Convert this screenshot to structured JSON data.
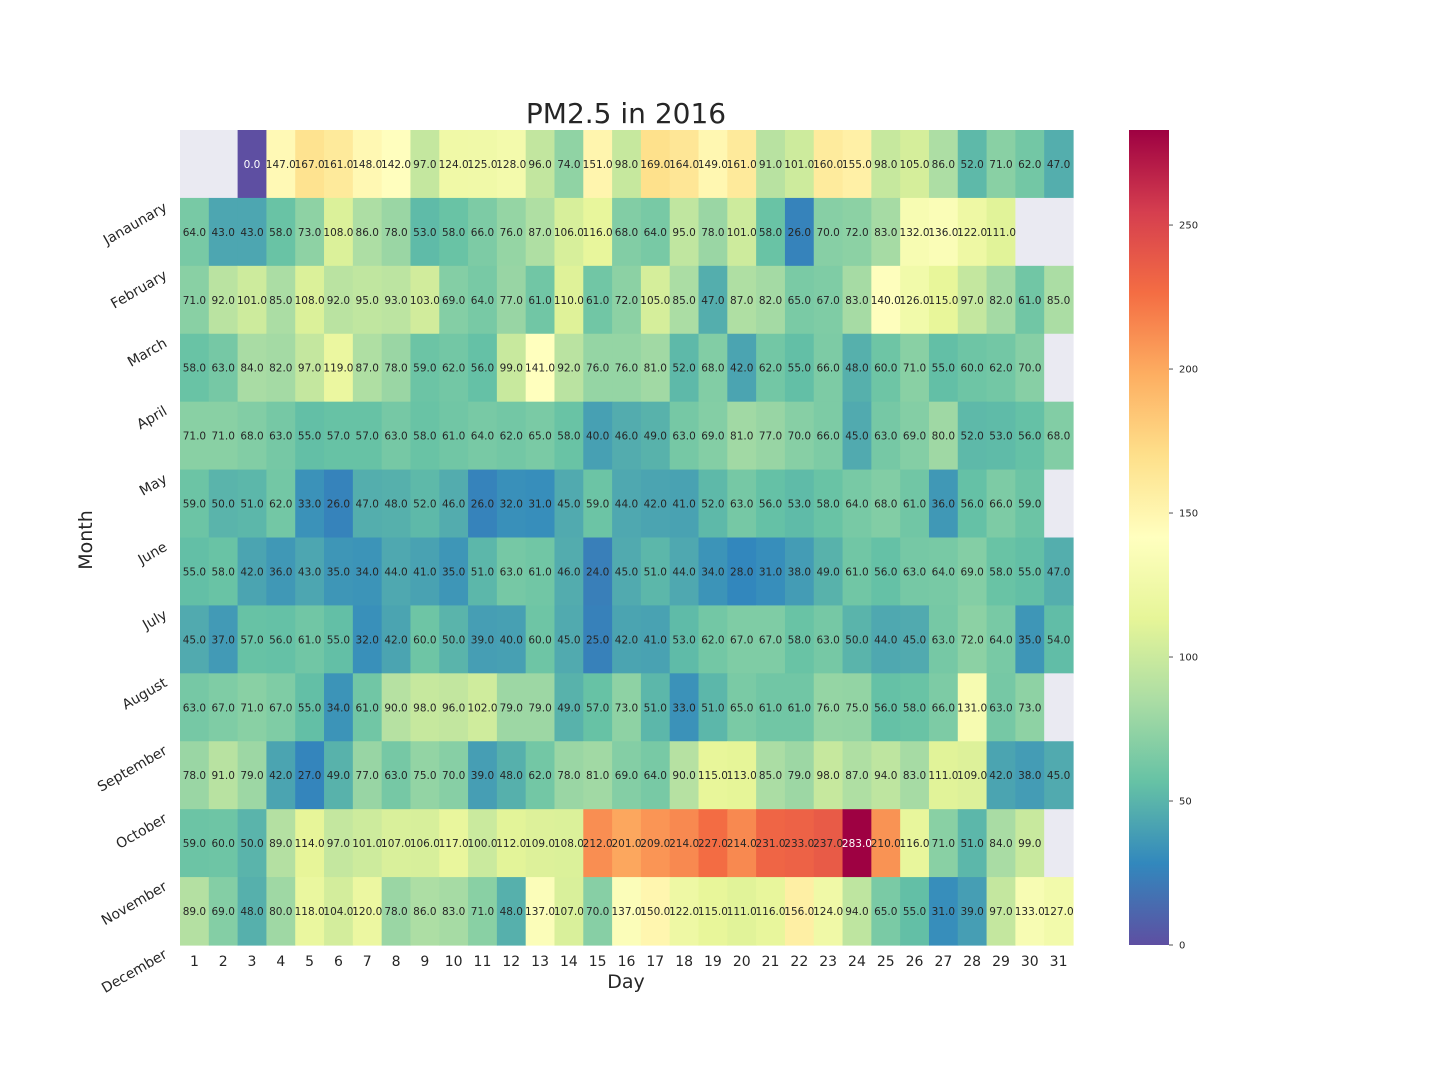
{
  "chart_data": {
    "type": "heatmap",
    "title": "PM2.5 in 2016",
    "xlabel": "Day",
    "ylabel": "Month",
    "x": [
      1,
      2,
      3,
      4,
      5,
      6,
      7,
      8,
      9,
      10,
      11,
      12,
      13,
      14,
      15,
      16,
      17,
      18,
      19,
      20,
      21,
      22,
      23,
      24,
      25,
      26,
      27,
      28,
      29,
      30,
      31
    ],
    "y_tick_labels": [
      "Janaunary",
      "February",
      "March",
      "April",
      "May",
      "June",
      "July",
      "August",
      "September",
      "October",
      "November",
      "December"
    ],
    "colorbar": {
      "range": [
        0,
        283
      ],
      "ticks": [
        0,
        50,
        100,
        150,
        200,
        250
      ],
      "colormap": "Spectral_r"
    },
    "missing_color": "#eaeaf2",
    "values": [
      [
        null,
        null,
        0.0,
        147.0,
        167.0,
        161.0,
        148.0,
        142.0,
        97.0,
        124.0,
        125.0,
        128.0,
        96.0,
        74.0,
        151.0,
        98.0,
        169.0,
        164.0,
        149.0,
        161.0,
        91.0,
        101.0,
        160.0,
        155.0,
        98.0,
        105.0,
        86.0,
        52.0,
        71.0,
        62.0,
        47.0
      ],
      [
        64.0,
        43.0,
        43.0,
        58.0,
        73.0,
        108.0,
        86.0,
        78.0,
        53.0,
        58.0,
        66.0,
        76.0,
        87.0,
        106.0,
        116.0,
        68.0,
        64.0,
        95.0,
        78.0,
        101.0,
        58.0,
        26.0,
        70.0,
        72.0,
        83.0,
        132.0,
        136.0,
        122.0,
        111.0,
        null,
        null
      ],
      [
        71.0,
        92.0,
        101.0,
        85.0,
        108.0,
        92.0,
        95.0,
        93.0,
        103.0,
        69.0,
        64.0,
        77.0,
        61.0,
        110.0,
        61.0,
        72.0,
        105.0,
        85.0,
        47.0,
        87.0,
        82.0,
        65.0,
        67.0,
        83.0,
        140.0,
        126.0,
        115.0,
        97.0,
        82.0,
        61.0,
        85.0
      ],
      [
        58.0,
        63.0,
        84.0,
        82.0,
        97.0,
        119.0,
        87.0,
        78.0,
        59.0,
        62.0,
        56.0,
        99.0,
        141.0,
        92.0,
        76.0,
        76.0,
        81.0,
        52.0,
        68.0,
        42.0,
        62.0,
        55.0,
        66.0,
        48.0,
        60.0,
        71.0,
        55.0,
        60.0,
        62.0,
        70.0,
        null
      ],
      [
        71.0,
        71.0,
        68.0,
        63.0,
        55.0,
        57.0,
        57.0,
        63.0,
        58.0,
        61.0,
        64.0,
        62.0,
        65.0,
        58.0,
        40.0,
        46.0,
        49.0,
        63.0,
        69.0,
        81.0,
        77.0,
        70.0,
        66.0,
        45.0,
        63.0,
        69.0,
        80.0,
        52.0,
        53.0,
        56.0,
        68.0
      ],
      [
        59.0,
        50.0,
        51.0,
        62.0,
        33.0,
        26.0,
        47.0,
        48.0,
        52.0,
        46.0,
        26.0,
        32.0,
        31.0,
        45.0,
        59.0,
        44.0,
        42.0,
        41.0,
        52.0,
        63.0,
        56.0,
        53.0,
        58.0,
        64.0,
        68.0,
        61.0,
        36.0,
        56.0,
        66.0,
        59.0,
        null
      ],
      [
        55.0,
        58.0,
        42.0,
        36.0,
        43.0,
        35.0,
        34.0,
        44.0,
        41.0,
        35.0,
        51.0,
        63.0,
        61.0,
        46.0,
        24.0,
        45.0,
        51.0,
        44.0,
        34.0,
        28.0,
        31.0,
        38.0,
        49.0,
        61.0,
        56.0,
        63.0,
        64.0,
        69.0,
        58.0,
        55.0,
        47.0
      ],
      [
        45.0,
        37.0,
        57.0,
        56.0,
        61.0,
        55.0,
        32.0,
        42.0,
        60.0,
        50.0,
        39.0,
        40.0,
        60.0,
        45.0,
        25.0,
        42.0,
        41.0,
        53.0,
        62.0,
        67.0,
        67.0,
        58.0,
        63.0,
        50.0,
        44.0,
        45.0,
        63.0,
        72.0,
        64.0,
        35.0,
        54.0
      ],
      [
        63.0,
        67.0,
        71.0,
        67.0,
        55.0,
        34.0,
        61.0,
        90.0,
        98.0,
        96.0,
        102.0,
        79.0,
        79.0,
        49.0,
        57.0,
        73.0,
        51.0,
        33.0,
        51.0,
        65.0,
        61.0,
        61.0,
        76.0,
        75.0,
        56.0,
        58.0,
        66.0,
        131.0,
        63.0,
        73.0,
        null
      ],
      [
        78.0,
        91.0,
        79.0,
        42.0,
        27.0,
        49.0,
        77.0,
        63.0,
        75.0,
        70.0,
        39.0,
        48.0,
        62.0,
        78.0,
        81.0,
        69.0,
        64.0,
        90.0,
        115.0,
        113.0,
        85.0,
        79.0,
        98.0,
        87.0,
        94.0,
        83.0,
        111.0,
        109.0,
        42.0,
        38.0,
        45.0
      ],
      [
        59.0,
        60.0,
        50.0,
        89.0,
        114.0,
        97.0,
        101.0,
        107.0,
        106.0,
        117.0,
        100.0,
        112.0,
        109.0,
        108.0,
        212.0,
        201.0,
        209.0,
        214.0,
        227.0,
        214.0,
        231.0,
        233.0,
        237.0,
        283.0,
        210.0,
        116.0,
        71.0,
        51.0,
        84.0,
        99.0,
        null
      ],
      [
        89.0,
        69.0,
        48.0,
        80.0,
        118.0,
        104.0,
        120.0,
        78.0,
        86.0,
        83.0,
        71.0,
        48.0,
        137.0,
        107.0,
        70.0,
        137.0,
        150.0,
        122.0,
        115.0,
        111.0,
        116.0,
        156.0,
        124.0,
        94.0,
        65.0,
        55.0,
        31.0,
        39.0,
        97.0,
        133.0,
        127.0
      ]
    ]
  }
}
